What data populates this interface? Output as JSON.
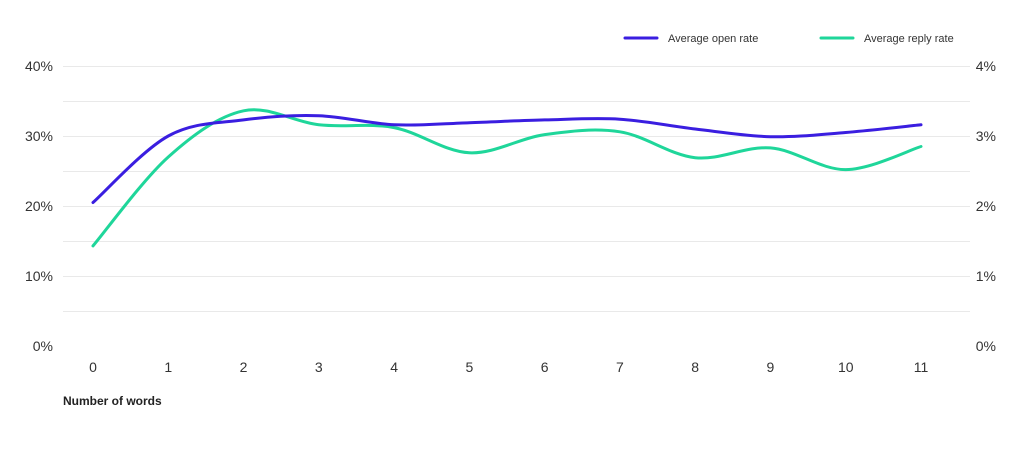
{
  "chart_data": {
    "type": "line",
    "title": "",
    "xlabel": "Number of words",
    "ylabel": "",
    "x": [
      0,
      1,
      2,
      3,
      4,
      5,
      6,
      7,
      8,
      9,
      10,
      11
    ],
    "x_tick_labels": [
      "0",
      "1",
      "2",
      "3",
      "4",
      "5",
      "6",
      "7",
      "8",
      "9",
      "10",
      "11"
    ],
    "ylim": [
      0,
      40
    ],
    "y_ticks": [
      0,
      10,
      20,
      30,
      40
    ],
    "y_tick_labels": [
      "0%",
      "10%",
      "20%",
      "30%",
      "40%"
    ],
    "y2lim": [
      0,
      4
    ],
    "y2_ticks": [
      0,
      1,
      2,
      3,
      4
    ],
    "y2_tick_labels": [
      "0%",
      "1%",
      "2%",
      "3%",
      "4%"
    ],
    "grid": true,
    "legend_position": "top-right",
    "series": [
      {
        "name": "Average open rate",
        "axis": "left",
        "color": "#3a1ee0",
        "values": [
          20.5,
          30.0,
          32.3,
          32.9,
          31.6,
          31.9,
          32.3,
          32.4,
          31.0,
          29.9,
          30.5,
          31.6
        ]
      },
      {
        "name": "Average reply rate",
        "axis": "right",
        "color": "#1fd69a",
        "values": [
          1.43,
          2.7,
          3.36,
          3.16,
          3.12,
          2.76,
          3.02,
          3.06,
          2.69,
          2.83,
          2.52,
          2.85
        ]
      }
    ]
  }
}
